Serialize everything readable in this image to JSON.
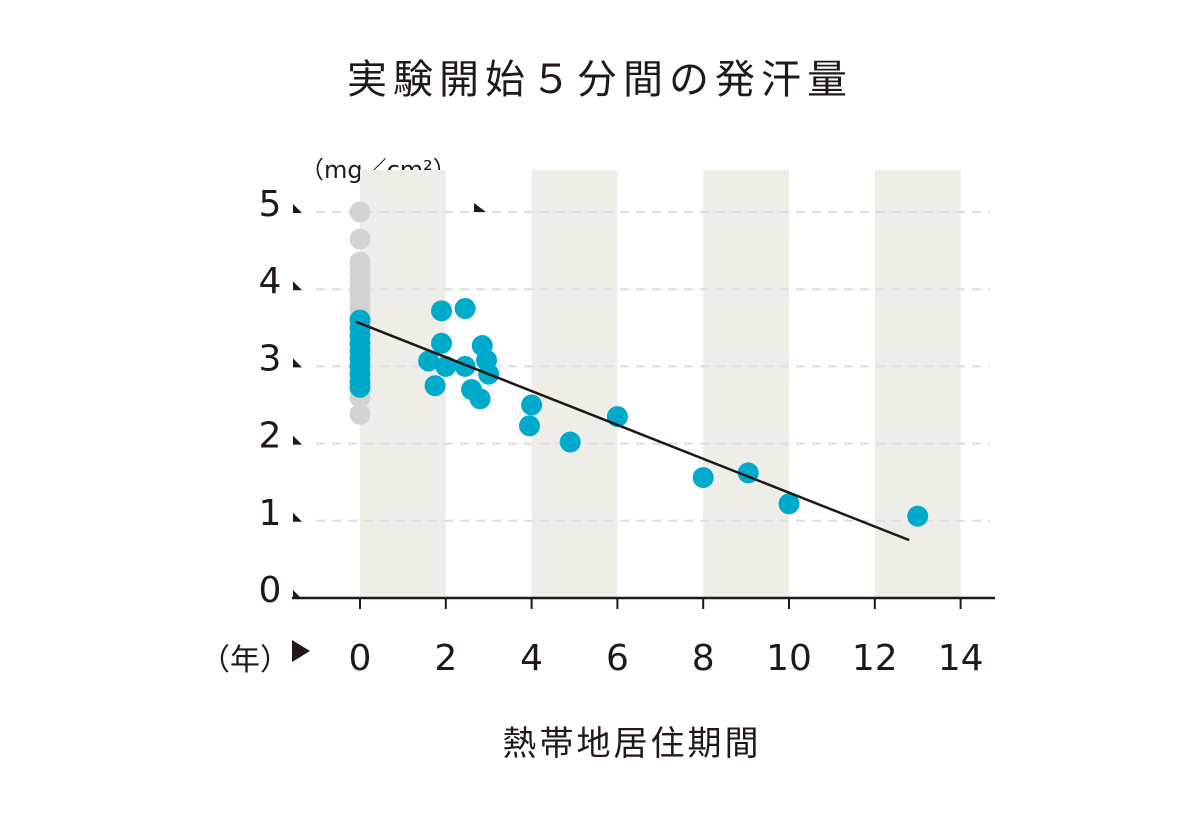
{
  "chart_data": {
    "type": "scatter",
    "title": "実験開始５分間の発汗量",
    "xlabel": "熱帯地居住期間",
    "ylabel": "",
    "x_unit": "（年）",
    "y_unit": "（mg／cm²）",
    "xlim": [
      0,
      14
    ],
    "ylim": [
      0,
      5
    ],
    "xticks": [
      "0",
      "2",
      "4",
      "6",
      "8",
      "10",
      "12",
      "14"
    ],
    "yticks": [
      "0",
      "1",
      "2",
      "3",
      "4",
      "5"
    ],
    "grid": "horizontal dashed",
    "colors": {
      "point": "#00aacb",
      "baseline_point": "#d3d3d1",
      "band": "#eeede7",
      "line": "#231815",
      "text": "#231815",
      "grid": "#dddddd"
    },
    "series": [
      {
        "role": "baseline",
        "points": [
          [
            0,
            5.0
          ],
          [
            0,
            4.65
          ],
          [
            0,
            4.35
          ],
          [
            0,
            4.25
          ],
          [
            0,
            4.15
          ],
          [
            0,
            4.05
          ],
          [
            0,
            3.95
          ],
          [
            0,
            3.85
          ],
          [
            0,
            3.75
          ],
          [
            0,
            3.65
          ],
          [
            0,
            2.6
          ],
          [
            0,
            2.38
          ]
        ]
      },
      {
        "role": "measured",
        "points": [
          [
            0,
            3.6
          ],
          [
            0,
            3.5
          ],
          [
            0,
            3.4
          ],
          [
            0,
            3.3
          ],
          [
            0,
            3.2
          ],
          [
            0,
            3.1
          ],
          [
            0,
            3.0
          ],
          [
            0,
            2.9
          ],
          [
            0,
            2.8
          ],
          [
            0,
            2.73
          ],
          [
            1.6,
            3.07
          ],
          [
            1.75,
            2.75
          ],
          [
            1.9,
            3.72
          ],
          [
            1.9,
            3.3
          ],
          [
            2.0,
            3.0
          ],
          [
            2.45,
            3.75
          ],
          [
            2.45,
            3.0
          ],
          [
            2.6,
            2.7
          ],
          [
            2.8,
            2.58
          ],
          [
            2.85,
            3.27
          ],
          [
            2.95,
            3.08
          ],
          [
            3.0,
            2.9
          ],
          [
            4.0,
            2.5
          ],
          [
            3.95,
            2.23
          ],
          [
            4.9,
            2.02
          ],
          [
            6.0,
            2.35
          ],
          [
            8.0,
            1.56
          ],
          [
            9.05,
            1.62
          ],
          [
            10.0,
            1.22
          ],
          [
            13.0,
            1.06
          ]
        ]
      }
    ],
    "trendline": {
      "from": [
        -0.1,
        3.58
      ],
      "to": [
        12.8,
        0.75
      ]
    }
  }
}
